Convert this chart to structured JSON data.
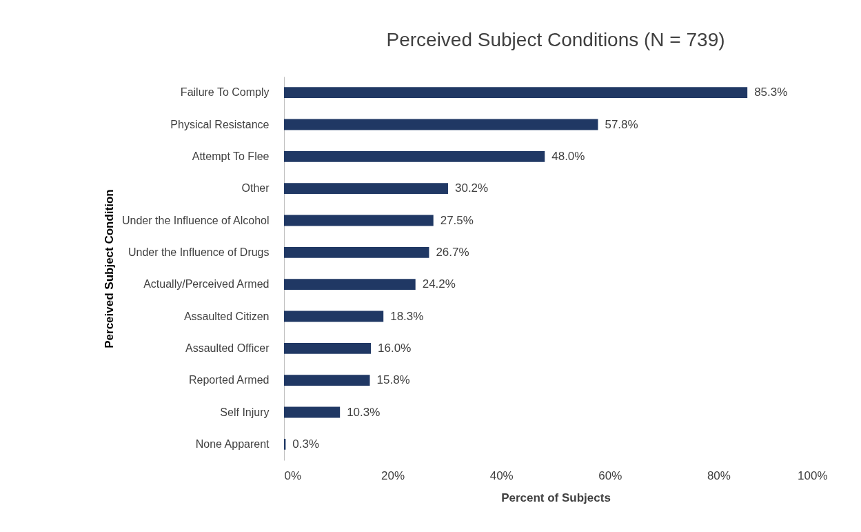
{
  "chart_data": {
    "type": "bar",
    "orientation": "horizontal",
    "title": "Perceived Subject Conditions (N = 739)",
    "xlabel": "Percent of Subjects",
    "ylabel": "Perceived Subject Condition",
    "categories": [
      "Failure To Comply",
      "Physical Resistance",
      "Attempt To Flee",
      "Other",
      "Under the Influence of Alcohol",
      "Under the Influence of Drugs",
      "Actually/Perceived Armed",
      "Assaulted Citizen",
      "Assaulted Officer",
      "Reported Armed",
      "Self Injury",
      "None Apparent"
    ],
    "values": [
      85.3,
      57.8,
      48.0,
      30.2,
      27.5,
      26.7,
      24.2,
      18.3,
      16.0,
      15.8,
      10.3,
      0.3
    ],
    "value_labels": [
      "85.3%",
      "57.8%",
      "48.0%",
      "30.2%",
      "27.5%",
      "26.7%",
      "24.2%",
      "18.3%",
      "16.0%",
      "15.8%",
      "10.3%",
      "0.3%"
    ],
    "color": "#203864",
    "xlim": [
      0,
      100
    ],
    "xticks": [
      {
        "value": 0,
        "label": "0%"
      },
      {
        "value": 20,
        "label": "20%"
      },
      {
        "value": 40,
        "label": "40%"
      },
      {
        "value": 60,
        "label": "60%"
      },
      {
        "value": 80,
        "label": "80%"
      },
      {
        "value": 100,
        "label": "100%"
      }
    ],
    "grid": false
  }
}
